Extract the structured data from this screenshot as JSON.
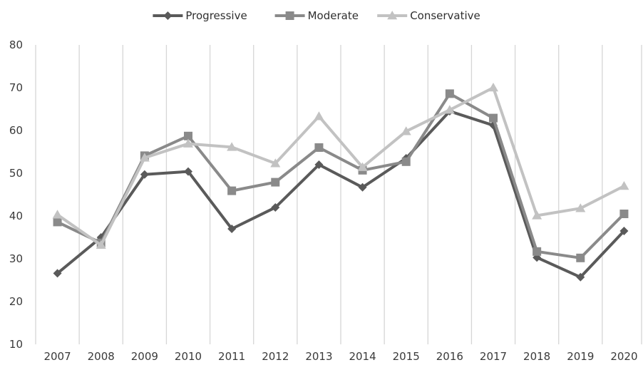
{
  "chart_data": {
    "type": "line",
    "x": [
      "2007",
      "2008",
      "2009",
      "2010",
      "2011",
      "2012",
      "2013",
      "2014",
      "2015",
      "2016",
      "2017",
      "2018",
      "2019",
      "2020"
    ],
    "series": [
      {
        "name": "Progressive",
        "marker": "diamond",
        "color": "#5a5a5a",
        "values": [
          26.6,
          35.0,
          49.7,
          50.4,
          37.0,
          42.0,
          52.0,
          46.7,
          53.5,
          64.5,
          61.2,
          30.3,
          25.7,
          36.5
        ]
      },
      {
        "name": "Moderate",
        "marker": "square",
        "color": "#8a8a8a",
        "values": [
          38.6,
          33.7,
          54.1,
          58.7,
          45.9,
          47.9,
          56.0,
          50.7,
          52.7,
          68.6,
          62.9,
          31.7,
          30.2,
          40.5
        ]
      },
      {
        "name": "Conservative",
        "marker": "triangle",
        "color": "#c2c2c2",
        "values": [
          40.3,
          33.2,
          53.6,
          56.9,
          56.1,
          52.3,
          63.3,
          51.4,
          59.8,
          64.8,
          70.0,
          40.1,
          41.8,
          47.0
        ]
      }
    ],
    "yticks": [
      10,
      20,
      30,
      40,
      50,
      60,
      70,
      80
    ],
    "ylim": [
      10,
      80
    ],
    "grid": "vertical",
    "legend": "top-center",
    "title": "",
    "xlabel": "",
    "ylabel": ""
  }
}
